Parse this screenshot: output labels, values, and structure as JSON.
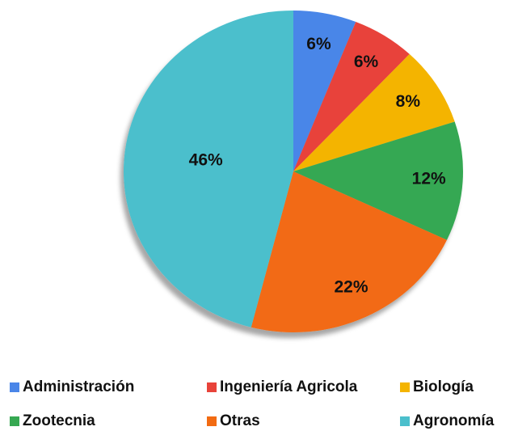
{
  "chart_data": {
    "type": "pie",
    "categories": [
      "Administración",
      "Ingeniería Agricola",
      "Biología",
      "Zootecnia",
      "Otras",
      "Agronomía"
    ],
    "values": [
      6,
      6,
      8,
      12,
      22,
      46
    ],
    "value_labels": [
      "6%",
      "6%",
      "8%",
      "12%",
      "22%",
      "46%"
    ],
    "colors": [
      "#4a86e8",
      "#e8433a",
      "#f4b400",
      "#36a852",
      "#f26b12",
      "#4bbfcc"
    ],
    "legend": "bottom"
  }
}
